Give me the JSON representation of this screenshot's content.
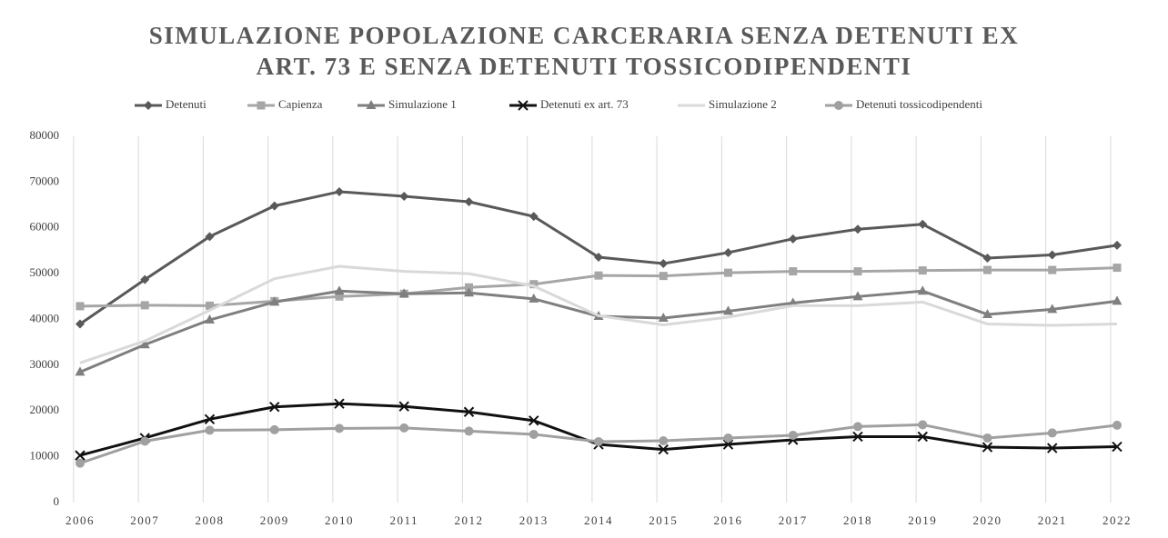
{
  "chart_data": {
    "type": "line",
    "title": [
      "SIMULAZIONE POPOLAZIONE CARCERARIA SENZA DETENUTI EX",
      "ART. 73 E SENZA DETENUTI TOSSICODIPENDENTI"
    ],
    "categories": [
      "2006",
      "2007",
      "2008",
      "2009",
      "2010",
      "2011",
      "2012",
      "2013",
      "2014",
      "2015",
      "2016",
      "2017",
      "2018",
      "2019",
      "2020",
      "2021",
      "2022"
    ],
    "ylim": [
      0,
      80000
    ],
    "yticks": [
      0,
      10000,
      20000,
      30000,
      40000,
      50000,
      60000,
      70000,
      80000
    ],
    "grid": true,
    "legend": "top",
    "series": [
      {
        "name": "Detenuti",
        "color": "#595959",
        "marker": "diamond",
        "values": [
          39000,
          48700,
          58100,
          64800,
          67900,
          66900,
          65700,
          62500,
          53600,
          52200,
          54600,
          57600,
          59700,
          60800,
          53400,
          54100,
          56200
        ]
      },
      {
        "name": "Capienza",
        "color": "#a6a6a6",
        "marker": "square",
        "values": [
          42900,
          43100,
          43000,
          44000,
          45000,
          45600,
          47000,
          47700,
          49600,
          49500,
          50200,
          50500,
          50500,
          50700,
          50800,
          50800,
          51300
        ]
      },
      {
        "name": "Simulazione 1",
        "color": "#7f7f7f",
        "marker": "triangle",
        "values": [
          28500,
          34500,
          39900,
          43800,
          46200,
          45600,
          45800,
          44500,
          40700,
          40300,
          41800,
          43600,
          45000,
          46200,
          41100,
          42200,
          44000
        ]
      },
      {
        "name": "Detenuti ex art. 73",
        "color": "#111111",
        "marker": "x",
        "values": [
          10300,
          14100,
          18200,
          20900,
          21600,
          21000,
          19800,
          17900,
          12700,
          11600,
          12700,
          13700,
          14400,
          14400,
          12100,
          11900,
          12200
        ]
      },
      {
        "name": "Simulazione 2",
        "color": "#d9d9d9",
        "marker": "none",
        "values": [
          30500,
          35300,
          42000,
          48900,
          51600,
          50500,
          50000,
          47300,
          40800,
          38800,
          40500,
          43000,
          43000,
          43800,
          39000,
          38700,
          39000
        ]
      },
      {
        "name": "Detenuti tossicodipendenti",
        "color": "#a0a0a0",
        "marker": "circle",
        "values": [
          8600,
          13400,
          15800,
          15900,
          16200,
          16300,
          15600,
          14900,
          13300,
          13500,
          14100,
          14700,
          16600,
          17000,
          14100,
          15200,
          16900
        ]
      }
    ]
  }
}
